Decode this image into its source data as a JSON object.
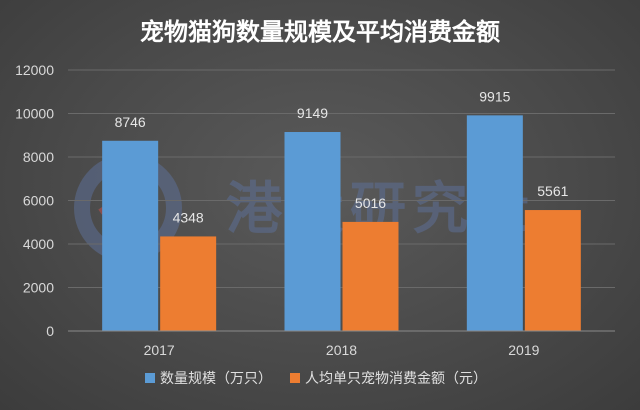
{
  "watermark": {
    "text": "港股研究社"
  },
  "chart_data": {
    "type": "bar",
    "title": "宠物猫狗数量规模及平均消费金额",
    "xlabel": "",
    "ylabel": "",
    "categories": [
      "2017",
      "2018",
      "2019"
    ],
    "series": [
      {
        "name": "数量规模（万只）",
        "values": [
          8746,
          9149,
          9915
        ],
        "color": "#5b9bd5"
      },
      {
        "name": "人均单只宠物消费金额（元）",
        "values": [
          4348,
          5016,
          5561
        ],
        "color": "#ed7d31"
      }
    ],
    "ylim": [
      0,
      12000
    ],
    "yticks": [
      0,
      2000,
      4000,
      6000,
      8000,
      10000,
      12000
    ],
    "grid": true,
    "legend_position": "bottom",
    "data_labels": true
  }
}
